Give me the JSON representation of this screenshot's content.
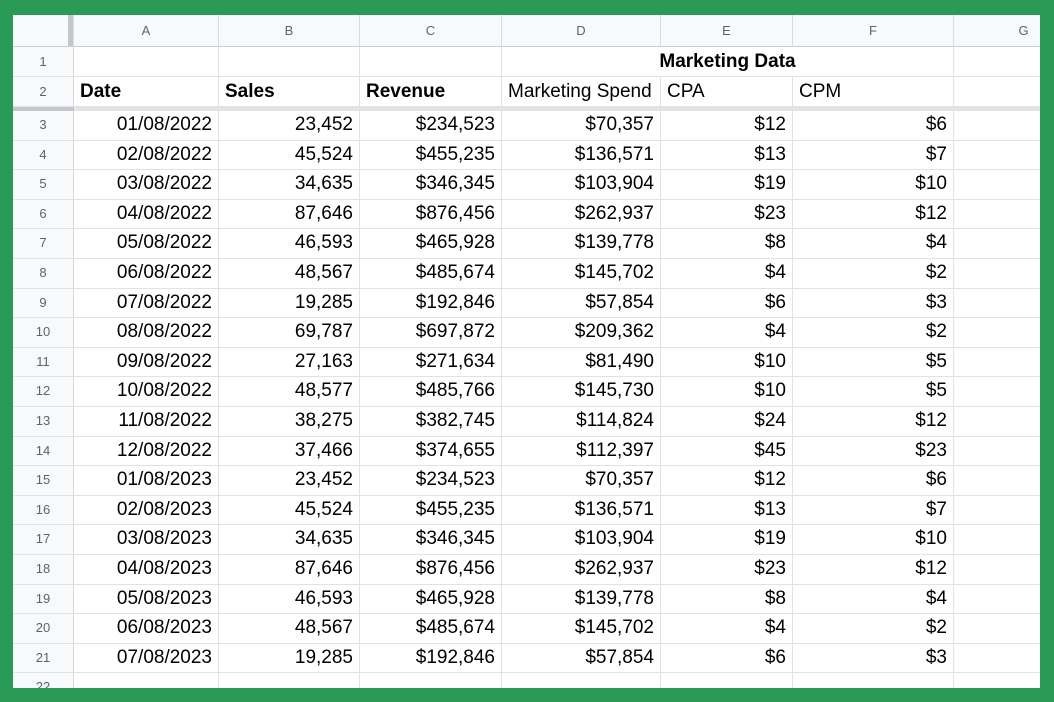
{
  "frame": {
    "color": "#2a9a57"
  },
  "sheet": {
    "column_headers": [
      "A",
      "B",
      "C",
      "D",
      "E",
      "F",
      "G"
    ],
    "frozen": {
      "row1_number": "1",
      "merged_title": "Marketing Data",
      "row2_number": "2",
      "col_headers": {
        "date": "Date",
        "sales": "Sales",
        "revenue": "Revenue",
        "spend": "Marketing Spend",
        "cpa": "CPA",
        "cpm": "CPM"
      }
    },
    "data_rows": [
      {
        "n": "3",
        "date": "01/08/2022",
        "sales": "23,452",
        "revenue": "$234,523",
        "spend": "$70,357",
        "cpa": "$12",
        "cpm": "$6"
      },
      {
        "n": "4",
        "date": "02/08/2022",
        "sales": "45,524",
        "revenue": "$455,235",
        "spend": "$136,571",
        "cpa": "$13",
        "cpm": "$7"
      },
      {
        "n": "5",
        "date": "03/08/2022",
        "sales": "34,635",
        "revenue": "$346,345",
        "spend": "$103,904",
        "cpa": "$19",
        "cpm": "$10"
      },
      {
        "n": "6",
        "date": "04/08/2022",
        "sales": "87,646",
        "revenue": "$876,456",
        "spend": "$262,937",
        "cpa": "$23",
        "cpm": "$12"
      },
      {
        "n": "7",
        "date": "05/08/2022",
        "sales": "46,593",
        "revenue": "$465,928",
        "spend": "$139,778",
        "cpa": "$8",
        "cpm": "$4"
      },
      {
        "n": "8",
        "date": "06/08/2022",
        "sales": "48,567",
        "revenue": "$485,674",
        "spend": "$145,702",
        "cpa": "$4",
        "cpm": "$2"
      },
      {
        "n": "9",
        "date": "07/08/2022",
        "sales": "19,285",
        "revenue": "$192,846",
        "spend": "$57,854",
        "cpa": "$6",
        "cpm": "$3"
      },
      {
        "n": "10",
        "date": "08/08/2022",
        "sales": "69,787",
        "revenue": "$697,872",
        "spend": "$209,362",
        "cpa": "$4",
        "cpm": "$2"
      },
      {
        "n": "11",
        "date": "09/08/2022",
        "sales": "27,163",
        "revenue": "$271,634",
        "spend": "$81,490",
        "cpa": "$10",
        "cpm": "$5"
      },
      {
        "n": "12",
        "date": "10/08/2022",
        "sales": "48,577",
        "revenue": "$485,766",
        "spend": "$145,730",
        "cpa": "$10",
        "cpm": "$5"
      },
      {
        "n": "13",
        "date": "11/08/2022",
        "sales": "38,275",
        "revenue": "$382,745",
        "spend": "$114,824",
        "cpa": "$24",
        "cpm": "$12"
      },
      {
        "n": "14",
        "date": "12/08/2022",
        "sales": "37,466",
        "revenue": "$374,655",
        "spend": "$112,397",
        "cpa": "$45",
        "cpm": "$23"
      },
      {
        "n": "15",
        "date": "01/08/2023",
        "sales": "23,452",
        "revenue": "$234,523",
        "spend": "$70,357",
        "cpa": "$12",
        "cpm": "$6"
      },
      {
        "n": "16",
        "date": "02/08/2023",
        "sales": "45,524",
        "revenue": "$455,235",
        "spend": "$136,571",
        "cpa": "$13",
        "cpm": "$7"
      },
      {
        "n": "17",
        "date": "03/08/2023",
        "sales": "34,635",
        "revenue": "$346,345",
        "spend": "$103,904",
        "cpa": "$19",
        "cpm": "$10"
      },
      {
        "n": "18",
        "date": "04/08/2023",
        "sales": "87,646",
        "revenue": "$876,456",
        "spend": "$262,937",
        "cpa": "$23",
        "cpm": "$12"
      },
      {
        "n": "19",
        "date": "05/08/2023",
        "sales": "46,593",
        "revenue": "$465,928",
        "spend": "$139,778",
        "cpa": "$8",
        "cpm": "$4"
      },
      {
        "n": "20",
        "date": "06/08/2023",
        "sales": "48,567",
        "revenue": "$485,674",
        "spend": "$145,702",
        "cpa": "$4",
        "cpm": "$2"
      },
      {
        "n": "21",
        "date": "07/08/2023",
        "sales": "19,285",
        "revenue": "$192,846",
        "spend": "$57,854",
        "cpa": "$6",
        "cpm": "$3"
      }
    ],
    "partial_row_number": "22"
  }
}
